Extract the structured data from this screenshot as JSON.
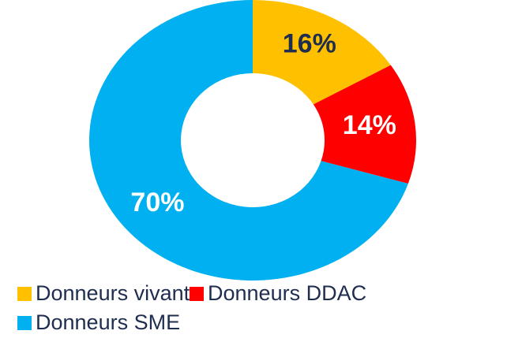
{
  "chart_data": {
    "type": "pie",
    "categories": [
      "Donneurs vivants",
      "Donneurs DDAC",
      "Donneurs SME"
    ],
    "values": [
      16,
      14,
      70
    ],
    "value_labels": [
      "16%",
      "14%",
      "70%"
    ],
    "colors": [
      "#FFC000",
      "#FF0000",
      "#00B0F0"
    ]
  }
}
